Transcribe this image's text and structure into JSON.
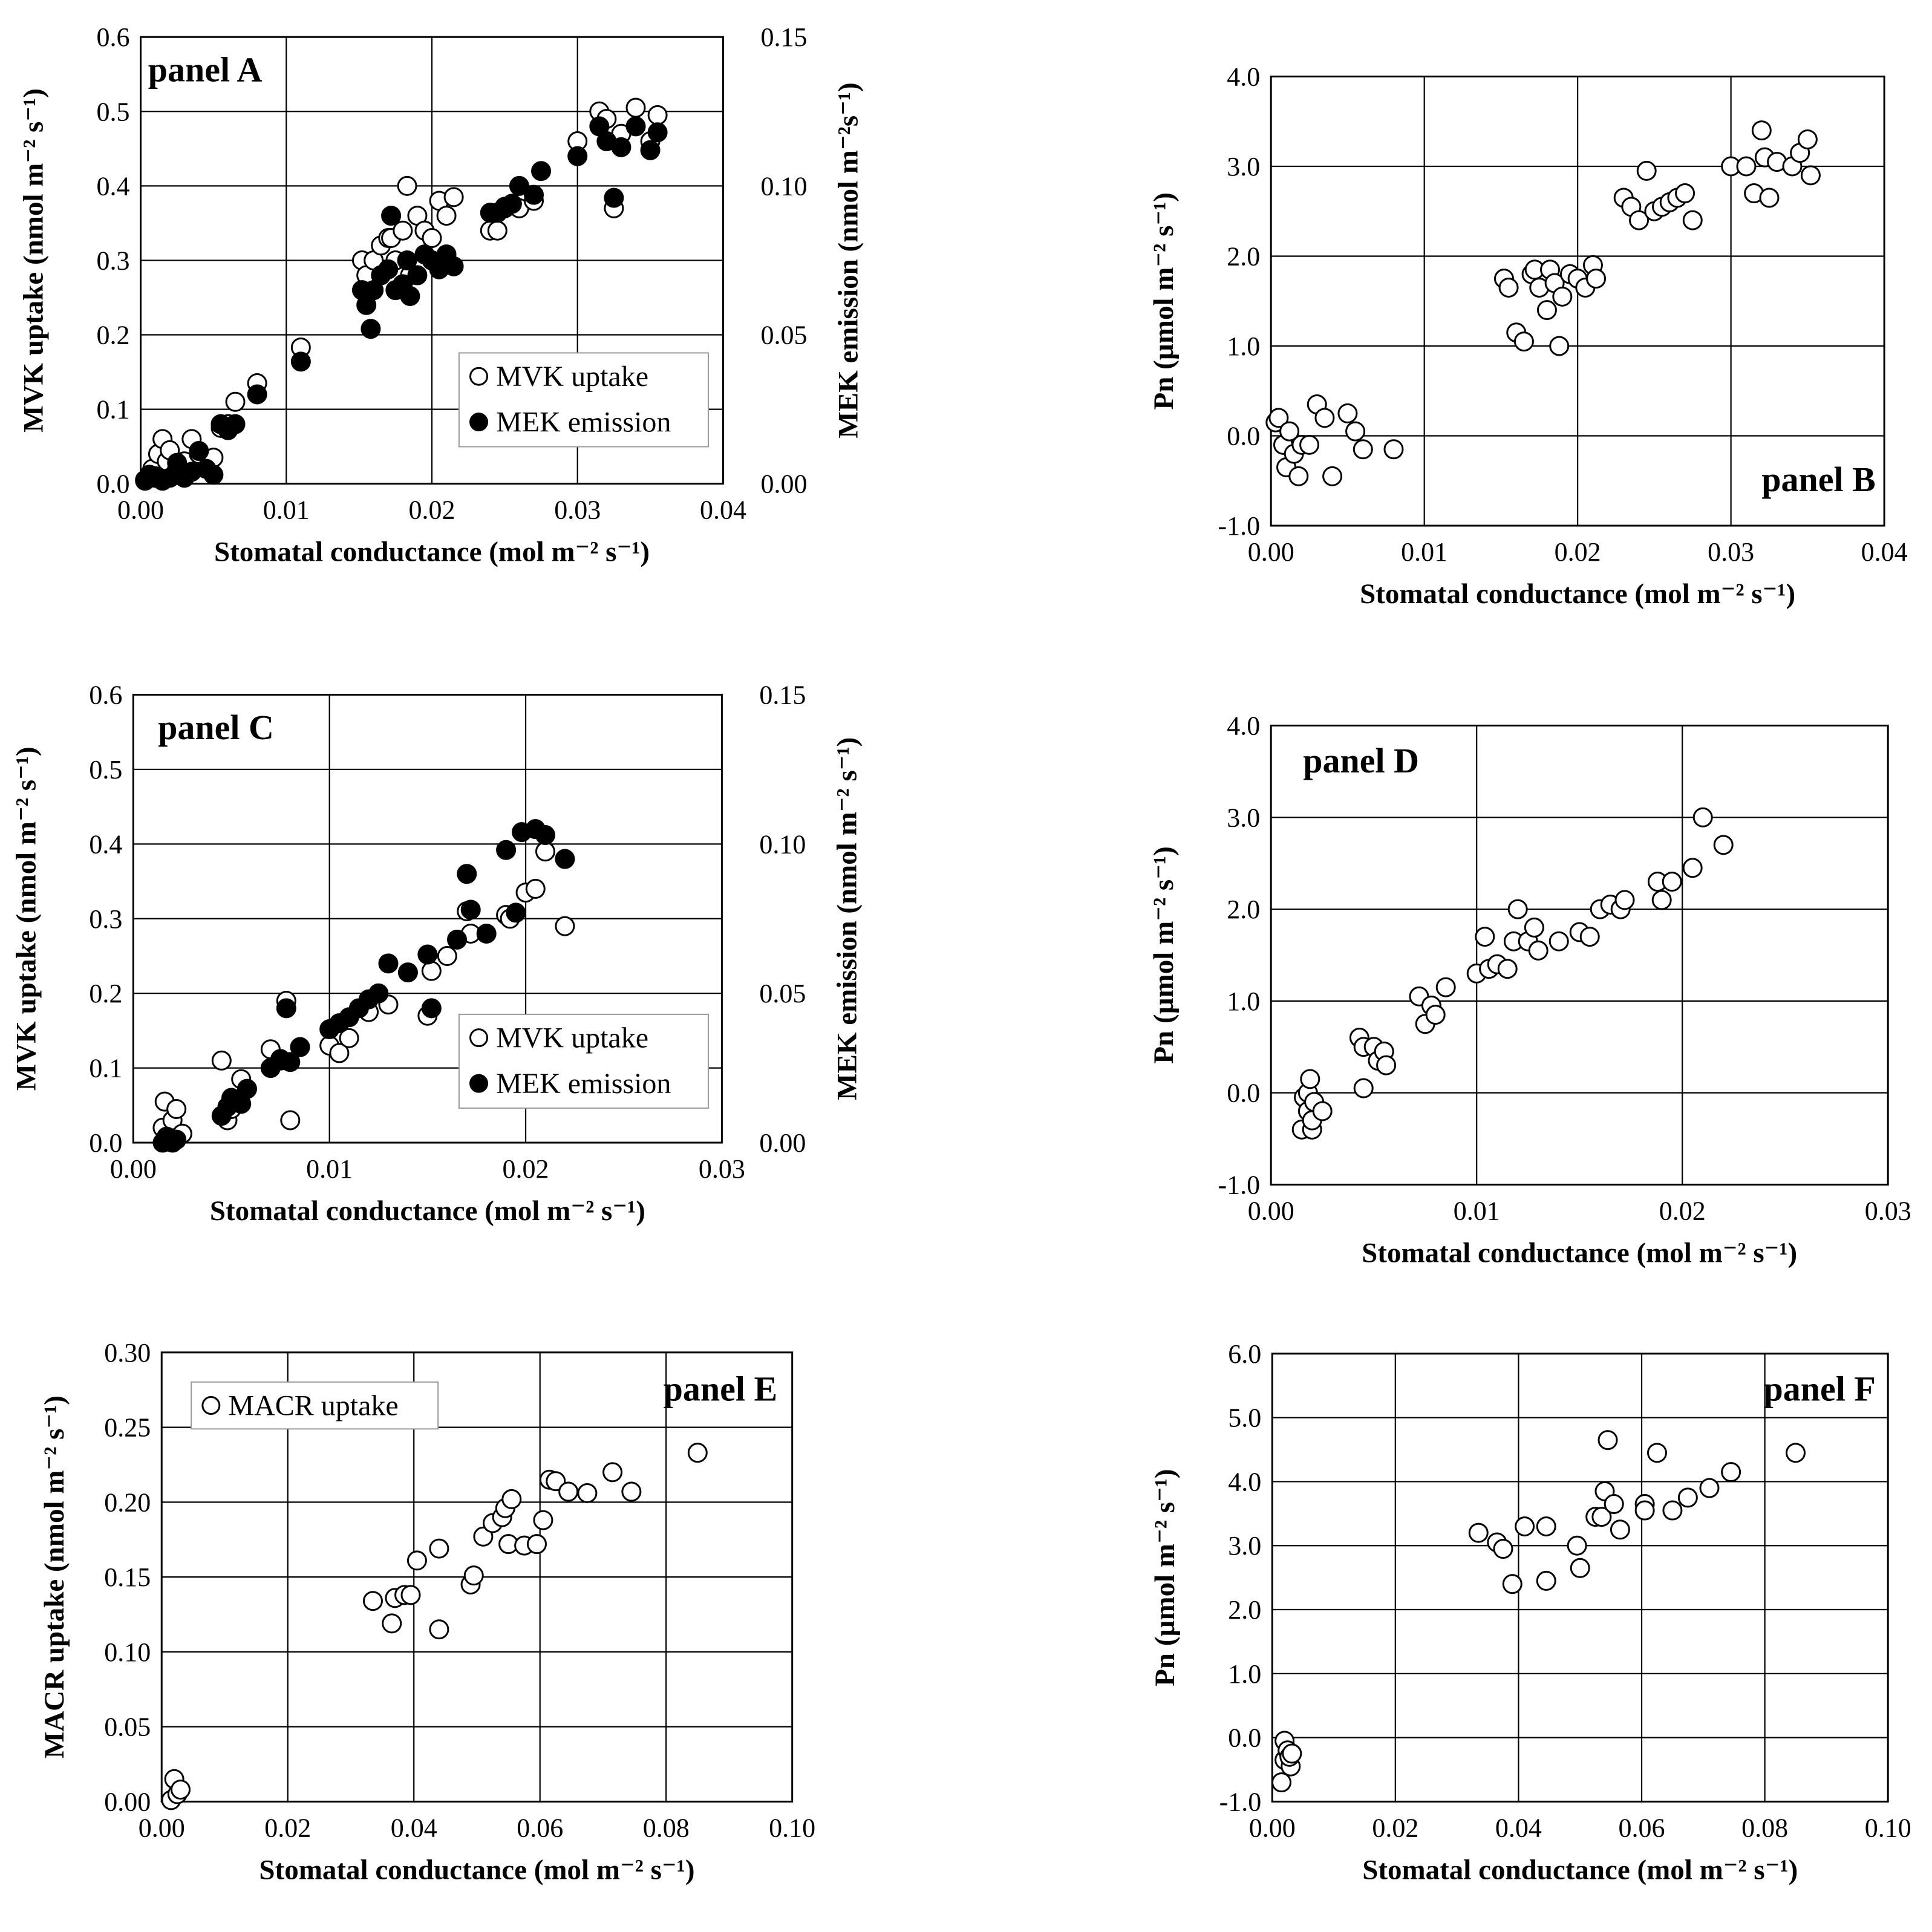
{
  "chart_data": [
    {
      "type": "scatter",
      "panel_label": "panel A",
      "xlabel": "Stomatal conductance (mol m⁻² s⁻¹)",
      "ylabel": "MVK uptake  (nmol m⁻² s⁻¹)",
      "y2label": "MEK emission  (nmol m⁻²s⁻¹)",
      "xlim": [
        0,
        0.04
      ],
      "ylim": [
        0,
        0.6
      ],
      "y2lim": [
        0,
        0.15
      ],
      "xticks": [
        "0.00",
        "0.01",
        "0.02",
        "0.03",
        "0.04"
      ],
      "yticks": [
        "0.0",
        "0.1",
        "0.2",
        "0.3",
        "0.4",
        "0.5",
        "0.6"
      ],
      "y2ticks": [
        "0.00",
        "0.05",
        "0.10",
        "0.15"
      ],
      "legend": [
        "MVK uptake",
        "MEK emission"
      ],
      "series": [
        {
          "name": "MVK uptake",
          "marker": "open",
          "axis": "left",
          "x": [
            0.0003,
            0.0008,
            0.001,
            0.0012,
            0.0015,
            0.0018,
            0.002,
            0.0025,
            0.003,
            0.0035,
            0.004,
            0.005,
            0.0055,
            0.006,
            0.0065,
            0.008,
            0.011,
            0.0152,
            0.0155,
            0.016,
            0.0165,
            0.017,
            0.0172,
            0.0175,
            0.018,
            0.0183,
            0.0185,
            0.019,
            0.0195,
            0.02,
            0.0205,
            0.021,
            0.0215,
            0.024,
            0.0245,
            0.025,
            0.026,
            0.027,
            0.03,
            0.0315,
            0.032,
            0.0325,
            0.033,
            0.034,
            0.035,
            0.0355
          ],
          "y": [
            0.005,
            0.02,
            0.01,
            0.04,
            0.06,
            0.03,
            0.045,
            0.02,
            0.03,
            0.06,
            0.04,
            0.035,
            0.075,
            0.08,
            0.11,
            0.135,
            0.183,
            0.3,
            0.28,
            0.3,
            0.32,
            0.33,
            0.33,
            0.3,
            0.34,
            0.4,
            0.28,
            0.36,
            0.34,
            0.33,
            0.38,
            0.36,
            0.385,
            0.34,
            0.34,
            0.37,
            0.37,
            0.38,
            0.46,
            0.5,
            0.49,
            0.37,
            0.47,
            0.505,
            0.46,
            0.495
          ]
        },
        {
          "name": "MEK emission",
          "marker": "filled",
          "axis": "right",
          "x": [
            0.0003,
            0.0006,
            0.001,
            0.0015,
            0.002,
            0.0025,
            0.003,
            0.0035,
            0.004,
            0.0045,
            0.005,
            0.0055,
            0.006,
            0.0065,
            0.008,
            0.011,
            0.0152,
            0.0155,
            0.0158,
            0.016,
            0.0165,
            0.017,
            0.0172,
            0.0175,
            0.018,
            0.0183,
            0.0185,
            0.019,
            0.0195,
            0.02,
            0.0205,
            0.021,
            0.0215,
            0.024,
            0.0245,
            0.025,
            0.0255,
            0.026,
            0.027,
            0.0275,
            0.03,
            0.0315,
            0.032,
            0.0325,
            0.033,
            0.034,
            0.035,
            0.0355
          ],
          "y": [
            0.001,
            0.003,
            0.002,
            0.001,
            0.002,
            0.007,
            0.002,
            0.004,
            0.011,
            0.005,
            0.003,
            0.02,
            0.018,
            0.02,
            0.03,
            0.041,
            0.065,
            0.06,
            0.052,
            0.065,
            0.07,
            0.072,
            0.09,
            0.065,
            0.067,
            0.075,
            0.063,
            0.07,
            0.077,
            0.075,
            0.072,
            0.077,
            0.073,
            0.091,
            0.091,
            0.093,
            0.094,
            0.1,
            0.097,
            0.105,
            0.11,
            0.12,
            0.115,
            0.096,
            0.113,
            0.12,
            0.112,
            0.118
          ]
        }
      ]
    },
    {
      "type": "scatter",
      "panel_label": "panel B",
      "xlabel": "Stomatal conductance (mol m⁻² s⁻¹)",
      "ylabel": "Pn (µmol m⁻² s⁻¹)",
      "xlim": [
        0,
        0.04
      ],
      "ylim": [
        -1.0,
        4.0
      ],
      "xticks": [
        "0.00",
        "0.01",
        "0.02",
        "0.03",
        "0.04"
      ],
      "yticks": [
        "-1.0",
        "0.0",
        "1.0",
        "2.0",
        "3.0",
        "4.0"
      ],
      "series": [
        {
          "name": "Pn",
          "marker": "open",
          "x": [
            0.0003,
            0.0005,
            0.0008,
            0.001,
            0.0012,
            0.0015,
            0.0018,
            0.002,
            0.0025,
            0.003,
            0.0035,
            0.004,
            0.005,
            0.0055,
            0.006,
            0.008,
            0.0152,
            0.0155,
            0.016,
            0.0165,
            0.017,
            0.0172,
            0.0175,
            0.018,
            0.0182,
            0.0185,
            0.0188,
            0.019,
            0.0195,
            0.02,
            0.0205,
            0.021,
            0.0212,
            0.023,
            0.0235,
            0.024,
            0.0245,
            0.025,
            0.0255,
            0.026,
            0.0265,
            0.027,
            0.0275,
            0.03,
            0.031,
            0.0315,
            0.032,
            0.0322,
            0.0325,
            0.033,
            0.034,
            0.0345,
            0.035,
            0.0352
          ],
          "y": [
            0.15,
            0.2,
            -0.1,
            -0.35,
            0.05,
            -0.2,
            -0.45,
            -0.1,
            -0.1,
            0.35,
            0.2,
            -0.45,
            0.25,
            0.05,
            -0.15,
            -0.15,
            1.75,
            1.65,
            1.15,
            1.05,
            1.8,
            1.85,
            1.65,
            1.4,
            1.85,
            1.7,
            1.0,
            1.55,
            1.8,
            1.75,
            1.65,
            1.9,
            1.75,
            2.65,
            2.55,
            2.4,
            2.95,
            2.5,
            2.55,
            2.6,
            2.65,
            2.7,
            2.4,
            3.0,
            3.0,
            2.7,
            3.4,
            3.1,
            2.65,
            3.05,
            3.0,
            3.15,
            3.3,
            2.9
          ]
        }
      ]
    },
    {
      "type": "scatter",
      "panel_label": "panel C",
      "xlabel": "Stomatal conductance (mol m⁻² s⁻¹)",
      "ylabel": "MVK uptake  (nmol m⁻² s⁻¹)",
      "y2label": "MEK emission  (nmol m⁻² s⁻¹)",
      "xlim": [
        0,
        0.03
      ],
      "ylim": [
        0,
        0.6
      ],
      "y2lim": [
        0,
        0.15
      ],
      "xticks": [
        "0.00",
        "0.01",
        "0.02",
        "0.03"
      ],
      "yticks": [
        "0.0",
        "0.1",
        "0.2",
        "0.3",
        "0.4",
        "0.5",
        "0.6"
      ],
      "y2ticks": [
        "0.00",
        "0.05",
        "0.10",
        "0.15"
      ],
      "legend": [
        "MVK uptake",
        "MEK emission"
      ],
      "series": [
        {
          "name": "MVK uptake",
          "marker": "open",
          "axis": "left",
          "x": [
            0.0015,
            0.0016,
            0.0018,
            0.002,
            0.0022,
            0.0025,
            0.0045,
            0.0048,
            0.005,
            0.0055,
            0.007,
            0.0075,
            0.0078,
            0.008,
            0.01,
            0.0105,
            0.011,
            0.012,
            0.013,
            0.015,
            0.0152,
            0.016,
            0.017,
            0.0172,
            0.019,
            0.0192,
            0.02,
            0.0205,
            0.021,
            0.022
          ],
          "y": [
            0.02,
            0.055,
            0.005,
            0.03,
            0.045,
            0.012,
            0.11,
            0.03,
            0.045,
            0.085,
            0.125,
            0.11,
            0.19,
            0.03,
            0.13,
            0.12,
            0.14,
            0.175,
            0.185,
            0.17,
            0.23,
            0.25,
            0.31,
            0.28,
            0.305,
            0.3,
            0.335,
            0.34,
            0.39,
            0.29
          ]
        },
        {
          "name": "MEK emission",
          "marker": "filled",
          "axis": "right",
          "x": [
            0.0015,
            0.0017,
            0.002,
            0.0022,
            0.0045,
            0.0048,
            0.005,
            0.0055,
            0.0058,
            0.007,
            0.0075,
            0.0078,
            0.008,
            0.0085,
            0.01,
            0.0105,
            0.011,
            0.0115,
            0.012,
            0.0125,
            0.013,
            0.014,
            0.015,
            0.0152,
            0.0165,
            0.017,
            0.0172,
            0.018,
            0.019,
            0.0195,
            0.0198,
            0.0205,
            0.021,
            0.022
          ],
          "y": [
            0.0,
            0.002,
            0.0,
            0.001,
            0.009,
            0.012,
            0.015,
            0.013,
            0.018,
            0.025,
            0.028,
            0.045,
            0.027,
            0.032,
            0.038,
            0.04,
            0.042,
            0.045,
            0.048,
            0.05,
            0.06,
            0.057,
            0.063,
            0.045,
            0.068,
            0.09,
            0.078,
            0.07,
            0.098,
            0.077,
            0.104,
            0.105,
            0.103,
            0.095
          ]
        }
      ]
    },
    {
      "type": "scatter",
      "panel_label": "panel D",
      "xlabel": "Stomatal conductance (mol m⁻² s⁻¹)",
      "ylabel": "Pn (µmol m⁻² s⁻¹)",
      "xlim": [
        0,
        0.03
      ],
      "ylim": [
        -1.0,
        4.0
      ],
      "xticks": [
        "0.00",
        "0.01",
        "0.02",
        "0.03"
      ],
      "yticks": [
        "-1.0",
        "0.0",
        "1.0",
        "2.0",
        "3.0",
        "4.0"
      ],
      "series": [
        {
          "name": "Pn",
          "marker": "open",
          "x": [
            0.0015,
            0.0016,
            0.0018,
            0.0018,
            0.0019,
            0.002,
            0.002,
            0.0021,
            0.0025,
            0.0043,
            0.0045,
            0.0045,
            0.005,
            0.0052,
            0.0055,
            0.0056,
            0.0072,
            0.0075,
            0.0078,
            0.008,
            0.0085,
            0.01,
            0.0104,
            0.0106,
            0.011,
            0.0115,
            0.0118,
            0.012,
            0.0125,
            0.0128,
            0.013,
            0.014,
            0.015,
            0.0155,
            0.016,
            0.0165,
            0.017,
            0.0172,
            0.0188,
            0.019,
            0.0195,
            0.0205,
            0.021,
            0.022
          ],
          "y": [
            -0.4,
            -0.05,
            0.0,
            -0.2,
            0.15,
            -0.4,
            -0.3,
            -0.1,
            -0.2,
            0.6,
            0.5,
            0.05,
            0.5,
            0.35,
            0.45,
            0.3,
            1.05,
            0.75,
            0.95,
            0.85,
            1.15,
            1.3,
            1.7,
            1.35,
            1.4,
            1.35,
            1.65,
            2.0,
            1.65,
            1.8,
            1.55,
            1.65,
            1.75,
            1.7,
            2.0,
            2.05,
            2.0,
            2.1,
            2.3,
            2.1,
            2.3,
            2.45,
            3.0,
            2.7
          ]
        }
      ]
    },
    {
      "type": "scatter",
      "panel_label": "panel E",
      "xlabel": "Stomatal conductance (mol m⁻² s⁻¹)",
      "ylabel": "MACR uptake  (nmol m⁻² s⁻¹)",
      "xlim": [
        0,
        0.1
      ],
      "ylim": [
        0,
        0.3
      ],
      "xticks": [
        "0.00",
        "0.02",
        "0.04",
        "0.06",
        "0.08",
        "0.10"
      ],
      "yticks": [
        "0.00",
        "0.05",
        "0.10",
        "0.15",
        "0.20",
        "0.25",
        "0.30"
      ],
      "legend": [
        "MACR uptake"
      ],
      "series": [
        {
          "name": "MACR uptake",
          "marker": "open",
          "x": [
            0.0015,
            0.002,
            0.0025,
            0.003,
            0.0335,
            0.0365,
            0.037,
            0.0385,
            0.0395,
            0.0405,
            0.044,
            0.044,
            0.049,
            0.0495,
            0.051,
            0.0525,
            0.054,
            0.0545,
            0.055,
            0.0555,
            0.0575,
            0.0595,
            0.0605,
            0.0615,
            0.0625,
            0.0645,
            0.0675,
            0.0715,
            0.0745,
            0.085
          ],
          "y": [
            0.001,
            0.015,
            0.005,
            0.008,
            0.134,
            0.119,
            0.136,
            0.138,
            0.138,
            0.161,
            0.115,
            0.169,
            0.145,
            0.151,
            0.177,
            0.186,
            0.19,
            0.196,
            0.172,
            0.202,
            0.171,
            0.172,
            0.188,
            0.215,
            0.214,
            0.207,
            0.206,
            0.22,
            0.207,
            0.233
          ]
        }
      ]
    },
    {
      "type": "scatter",
      "panel_label": "panel F",
      "xlabel": "Stomatal conductance (mol m⁻² s⁻¹)",
      "ylabel": "Pn (µmol m⁻² s⁻¹)",
      "xlim": [
        0,
        0.1
      ],
      "ylim": [
        -1.0,
        6.0
      ],
      "xticks": [
        "0.00",
        "0.02",
        "0.04",
        "0.06",
        "0.08",
        "0.10"
      ],
      "yticks": [
        "-1.0",
        "0.0",
        "1.0",
        "2.0",
        "3.0",
        "4.0",
        "5.0",
        "6.0"
      ],
      "series": [
        {
          "name": "Pn",
          "marker": "open",
          "x": [
            0.0015,
            0.002,
            0.002,
            0.0025,
            0.003,
            0.0028,
            0.0032,
            0.0335,
            0.0365,
            0.0375,
            0.039,
            0.041,
            0.0445,
            0.0445,
            0.0495,
            0.05,
            0.0525,
            0.0535,
            0.054,
            0.0545,
            0.0555,
            0.0565,
            0.0605,
            0.0605,
            0.0625,
            0.065,
            0.0675,
            0.071,
            0.0745,
            0.085
          ],
          "y": [
            -0.7,
            -0.05,
            -0.35,
            -0.2,
            -0.45,
            -0.3,
            -0.25,
            3.2,
            3.05,
            2.95,
            2.4,
            3.3,
            3.3,
            2.45,
            3.0,
            2.65,
            3.45,
            3.45,
            3.85,
            4.65,
            3.65,
            3.25,
            3.65,
            3.55,
            4.45,
            3.55,
            3.75,
            3.9,
            4.15,
            4.45
          ]
        }
      ]
    }
  ]
}
